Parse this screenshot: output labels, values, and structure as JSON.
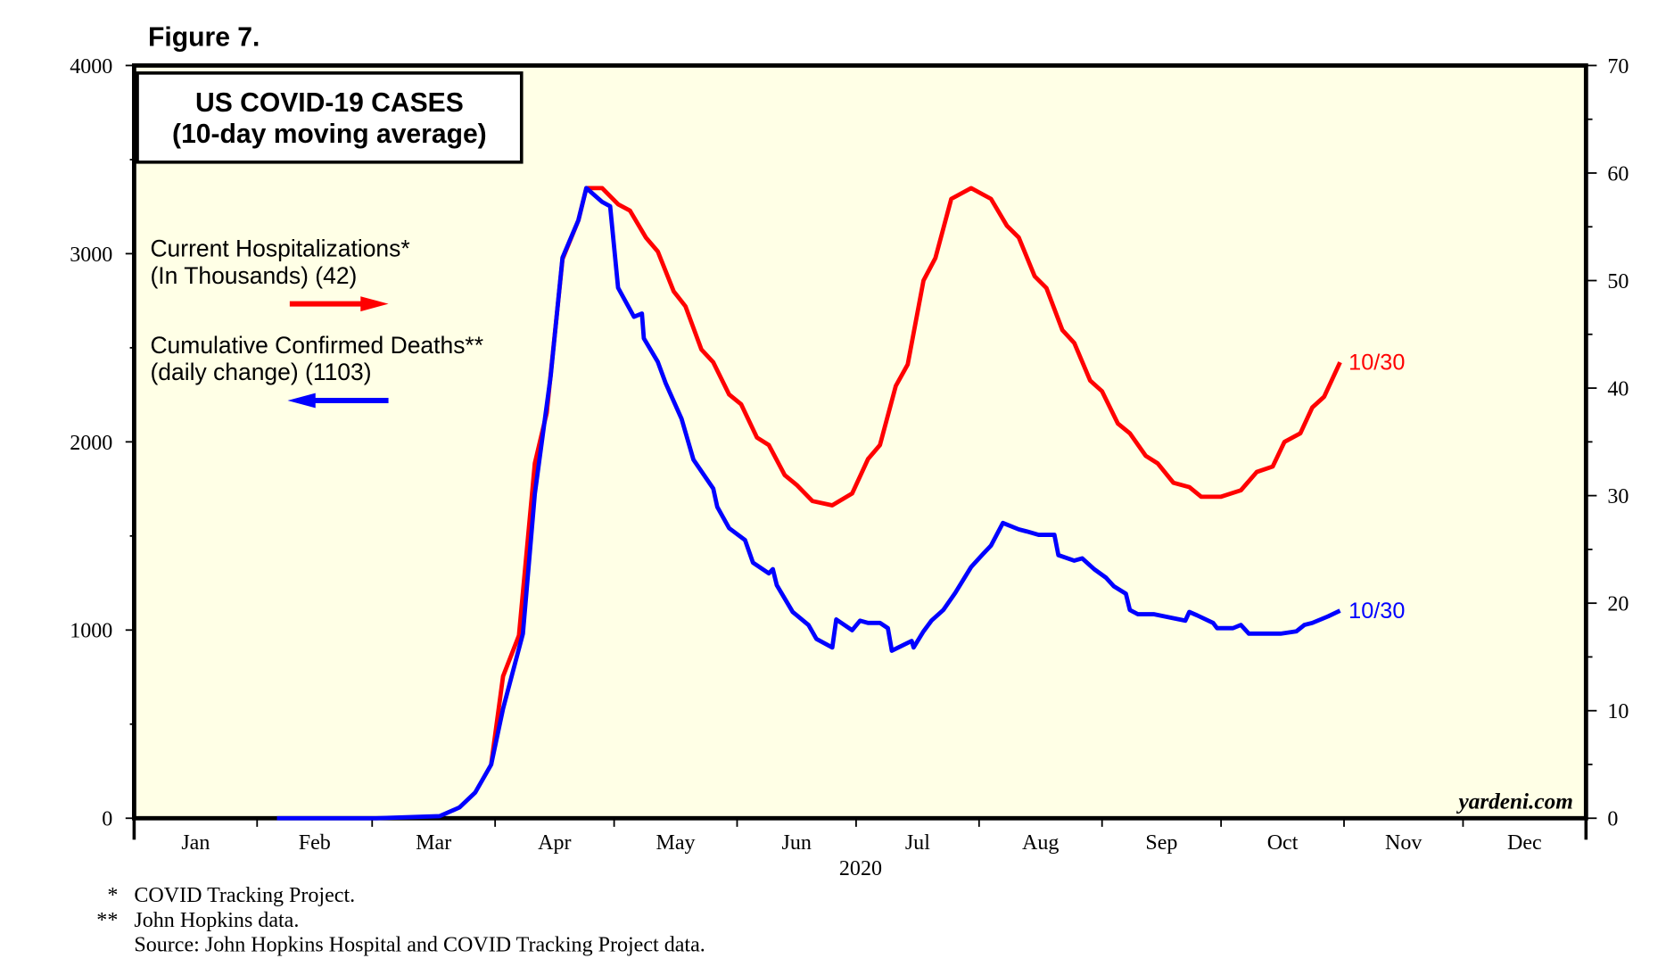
{
  "figure_label": "Figure 7.",
  "chart_data": {
    "type": "line",
    "title": "US COVID-19 CASES",
    "subtitle": "(10-day moving average)",
    "xlabel": "2020",
    "x_unit": "day of year 2020",
    "x_tick_labels": [
      "Jan",
      "Feb",
      "Mar",
      "Apr",
      "May",
      "Jun",
      "Jul",
      "Aug",
      "Sep",
      "Oct",
      "Nov",
      "Dec"
    ],
    "month_start_days": [
      0,
      31,
      60,
      91,
      121,
      152,
      182,
      213,
      244,
      274,
      305,
      335,
      366
    ],
    "xlim": [
      0,
      366
    ],
    "left_axis": {
      "ylim": [
        0,
        4000
      ],
      "ticks": [
        0,
        1000,
        2000,
        3000,
        4000
      ],
      "minor_step": 500
    },
    "right_axis": {
      "ylim": [
        0,
        70
      ],
      "ticks": [
        0,
        10,
        20,
        30,
        40,
        50,
        60,
        70
      ],
      "minor_step": 5
    },
    "grid": false,
    "series": [
      {
        "name": "Current Hospitalizations*",
        "legend_line2": "(In Thousands) (42)",
        "axis": "right",
        "color": "#ff0000",
        "end_label": "10/30",
        "x": [
          90,
          93,
          97,
          101,
          104,
          108,
          112,
          114,
          118,
          122,
          125,
          129,
          132,
          136,
          139,
          143,
          146,
          150,
          153,
          157,
          160,
          164,
          167,
          171,
          176,
          181,
          185,
          188,
          192,
          195,
          199,
          202,
          206,
          211,
          216,
          220,
          223,
          227,
          230,
          234,
          237,
          241,
          244,
          248,
          251,
          255,
          258,
          262,
          266,
          269,
          274,
          279,
          283,
          287,
          290,
          294,
          297,
          300,
          304
        ],
        "values": [
          5.0,
          13.2,
          17,
          33,
          37.7,
          52,
          55.6,
          58.6,
          58.6,
          57.1,
          56.5,
          54,
          52.7,
          49,
          47.6,
          43.6,
          42.4,
          39.4,
          38.5,
          35.4,
          34.7,
          31.9,
          31,
          29.5,
          29.1,
          30.2,
          33.4,
          34.7,
          40.2,
          42.2,
          50,
          52.1,
          57.6,
          58.6,
          57.6,
          55.1,
          54,
          50.4,
          49.3,
          45.4,
          44.2,
          40.7,
          39.7,
          36.7,
          35.8,
          33.7,
          33,
          31.2,
          30.8,
          29.9,
          29.9,
          30.5,
          32.2,
          32.7,
          35,
          35.8,
          38.2,
          39.2,
          42.4
        ]
      },
      {
        "name": "Cumulative Confirmed Deaths**",
        "legend_line2": "(daily change) (1103)",
        "axis": "left",
        "color": "#0000ff",
        "end_label": "10/30",
        "x": [
          36,
          61,
          77,
          82,
          86,
          90,
          93,
          98,
          101,
          105,
          108,
          112,
          114,
          118,
          120,
          122,
          126,
          128,
          128.5,
          132,
          134,
          138,
          141,
          146,
          147,
          150,
          154,
          156,
          160,
          161,
          162,
          166,
          170,
          172,
          176,
          177,
          181,
          183,
          185,
          188,
          190,
          191,
          196,
          196.5,
          199,
          201,
          204,
          207,
          211,
          214,
          216,
          219,
          223,
          225,
          228,
          232,
          233,
          237,
          239,
          242,
          245,
          247,
          250,
          251,
          253,
          257,
          261,
          265,
          266,
          268,
          272,
          273,
          277,
          279,
          281,
          285,
          289,
          293,
          295,
          297,
          301,
          304
        ],
        "values": [
          0,
          0,
          11,
          57,
          137,
          285,
          582,
          981,
          1723,
          2351,
          2979,
          3178,
          3349,
          3275,
          3252,
          2819,
          2665,
          2682,
          2550,
          2425,
          2311,
          2123,
          1906,
          1752,
          1655,
          1541,
          1478,
          1358,
          1301,
          1324,
          1238,
          1096,
          1027,
          953,
          907,
          1056,
          999,
          1050,
          1038,
          1038,
          1010,
          890,
          942,
          907,
          993,
          1050,
          1107,
          1198,
          1335,
          1404,
          1449,
          1569,
          1535,
          1524,
          1506,
          1506,
          1398,
          1369,
          1381,
          1324,
          1278,
          1232,
          1193,
          1107,
          1084,
          1084,
          1067,
          1050,
          1096,
          1078,
          1038,
          1010,
          1010,
          1027,
          981,
          981,
          981,
          993,
          1027,
          1038,
          1073,
          1103
        ]
      }
    ],
    "watermark": "yardeni.com"
  },
  "footnotes": [
    {
      "mark": "*",
      "text": "COVID Tracking Project."
    },
    {
      "mark": "**",
      "text": "John Hopkins data."
    },
    {
      "mark": "",
      "text": "Source: John Hopkins Hospital and COVID Tracking Project data."
    }
  ]
}
